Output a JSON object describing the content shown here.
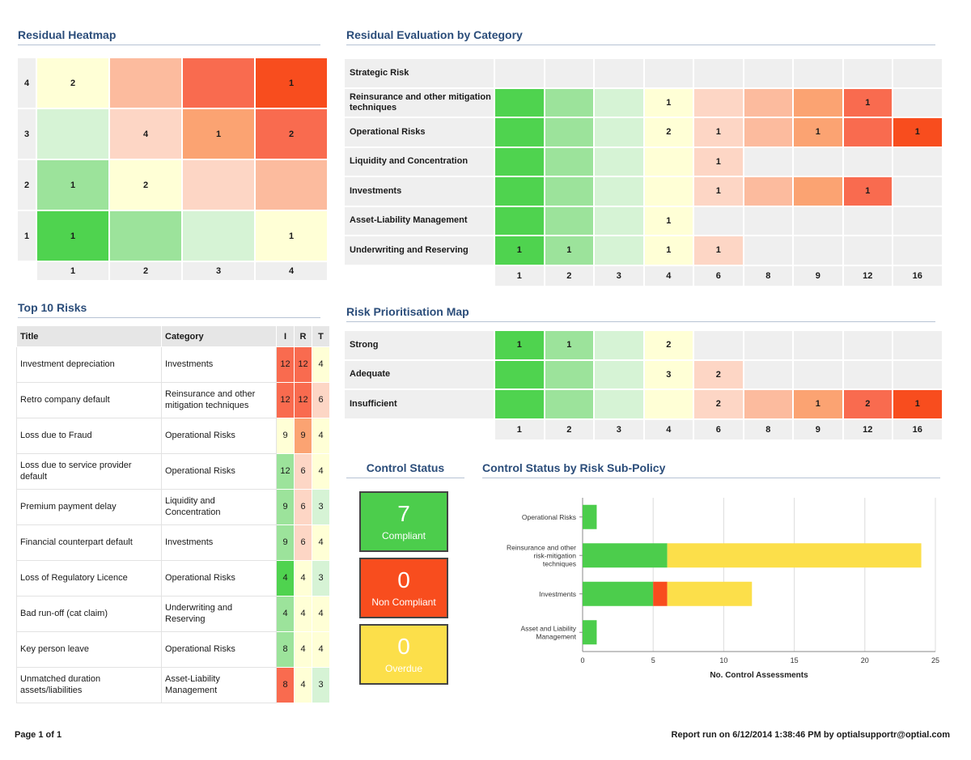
{
  "colors": {
    "1": "#4fd34f",
    "2": "#9ce39b",
    "3": "#d6f3d5",
    "4": "#ffffd6",
    "6": "#fdd6c5",
    "8": "#fcbb9e",
    "9": "#fba372",
    "12": "#f96b4f",
    "16": "#f84d1e",
    "compliant": "#4ccd4c",
    "noncompliant": "#f84d1e",
    "overdue": "#fcdf4a"
  },
  "heatmap": {
    "title": "Residual Heatmap",
    "rows": [
      "4",
      "3",
      "2",
      "1"
    ],
    "cols": [
      "1",
      "2",
      "3",
      "4"
    ],
    "cells": [
      [
        {
          "v": "2",
          "c": "4"
        },
        {
          "v": "",
          "c": "8"
        },
        {
          "v": "",
          "c": "12"
        },
        {
          "v": "1",
          "c": "16"
        }
      ],
      [
        {
          "v": "",
          "c": "3"
        },
        {
          "v": "4",
          "c": "6"
        },
        {
          "v": "1",
          "c": "9"
        },
        {
          "v": "2",
          "c": "12"
        }
      ],
      [
        {
          "v": "1",
          "c": "2"
        },
        {
          "v": "2",
          "c": "4"
        },
        {
          "v": "",
          "c": "6"
        },
        {
          "v": "",
          "c": "8"
        }
      ],
      [
        {
          "v": "1",
          "c": "1"
        },
        {
          "v": "",
          "c": "2"
        },
        {
          "v": "",
          "c": "3"
        },
        {
          "v": "1",
          "c": "4"
        }
      ]
    ]
  },
  "evaluation": {
    "title": "Residual Evaluation by Category",
    "columns": [
      "1",
      "2",
      "3",
      "4",
      "6",
      "8",
      "9",
      "12",
      "16"
    ],
    "rows": [
      {
        "label": "Strategic Risk",
        "colored": 0,
        "values": {}
      },
      {
        "label": "Reinsurance and other mitigation techniques",
        "colored": 8,
        "values": {
          "4": "1",
          "12": "1"
        }
      },
      {
        "label": "Operational Risks",
        "colored": 9,
        "values": {
          "4": "2",
          "6": "1",
          "9": "1",
          "16": "1"
        }
      },
      {
        "label": "Liquidity and Concentration",
        "colored": 5,
        "values": {
          "6": "1"
        }
      },
      {
        "label": "Investments",
        "colored": 8,
        "values": {
          "6": "1",
          "12": "1"
        }
      },
      {
        "label": "Asset-Liability Management",
        "colored": 4,
        "values": {
          "4": "1"
        }
      },
      {
        "label": "Underwriting and Reserving",
        "colored": 5,
        "values": {
          "1": "1",
          "2": "1",
          "4": "1",
          "6": "1"
        }
      }
    ]
  },
  "prioritisation": {
    "title": "Risk Prioritisation Map",
    "columns": [
      "1",
      "2",
      "3",
      "4",
      "6",
      "8",
      "9",
      "12",
      "16"
    ],
    "rows": [
      {
        "label": "Strong",
        "colored": 4,
        "values": {
          "1": "1",
          "2": "1",
          "4": "2"
        }
      },
      {
        "label": "Adequate",
        "colored": 5,
        "values": {
          "4": "3",
          "6": "2"
        }
      },
      {
        "label": "Insufficient",
        "colored": 9,
        "values": {
          "6": "2",
          "9": "1",
          "12": "2",
          "16": "1"
        }
      }
    ]
  },
  "top10": {
    "title": "Top 10 Risks",
    "headers": {
      "title": "Title",
      "category": "Category",
      "i": "I",
      "r": "R",
      "t": "T"
    },
    "rows": [
      {
        "title": "Investment depreciation",
        "category": "Investments",
        "i": "12",
        "r": "12",
        "t": "4"
      },
      {
        "title": "Retro company default",
        "category": "Reinsurance and other mitigation techniques",
        "i": "12",
        "r": "12",
        "t": "6"
      },
      {
        "title": "Loss due to Fraud",
        "category": "Operational Risks",
        "i": "9",
        "r": "9",
        "t": "4"
      },
      {
        "title": "Loss due to service provider default",
        "category": "Operational Risks",
        "i": "12",
        "r": "6",
        "t": "4"
      },
      {
        "title": "Premium payment delay",
        "category": "Liquidity and Concentration",
        "i": "9",
        "r": "6",
        "t": "3"
      },
      {
        "title": "Financial counterpart default",
        "category": "Investments",
        "i": "9",
        "r": "6",
        "t": "4"
      },
      {
        "title": "Loss of Regulatory Licence",
        "category": "Operational Risks",
        "i": "4",
        "r": "4",
        "t": "3"
      },
      {
        "title": "Bad run-off (cat claim)",
        "category": "Underwriting and Reserving",
        "i": "4",
        "r": "4",
        "t": "4"
      },
      {
        "title": "Key person leave",
        "category": "Operational Risks",
        "i": "8",
        "r": "4",
        "t": "4"
      },
      {
        "title": "Unmatched duration assets/liabilities",
        "category": "Asset-Liability Management",
        "i": "8",
        "r": "4",
        "t": "3"
      }
    ],
    "cell_colors": [
      {
        "i": "12",
        "r": "12",
        "t": "4"
      },
      {
        "i": "12",
        "r": "12",
        "t": "6"
      },
      {
        "i": "4",
        "r": "9",
        "t": "4"
      },
      {
        "i": "2",
        "r": "6",
        "t": "4"
      },
      {
        "i": "2",
        "r": "6",
        "t": "3"
      },
      {
        "i": "2",
        "r": "6",
        "t": "4"
      },
      {
        "i": "1",
        "r": "4",
        "t": "3"
      },
      {
        "i": "2",
        "r": "4",
        "t": "4"
      },
      {
        "i": "2",
        "r": "4",
        "t": "4"
      },
      {
        "i": "12",
        "r": "4",
        "t": "3"
      }
    ]
  },
  "control_status": {
    "title": "Control Status",
    "compliant": {
      "count": "7",
      "label": "Compliant"
    },
    "noncompliant": {
      "count": "0",
      "label": "Non Compliant"
    },
    "overdue": {
      "count": "0",
      "label": "Overdue"
    }
  },
  "chart_data": {
    "type": "bar",
    "orientation": "horizontal",
    "stacked": true,
    "title": "Control Status by Risk Sub-Policy",
    "xlabel": "No. Control Assessments",
    "xlim": [
      0,
      25
    ],
    "xticks": [
      0,
      5,
      10,
      15,
      20,
      25
    ],
    "grid": true,
    "categories": [
      "Operational Risks",
      "Reinsurance and other risk-mitigation techniques",
      "Investments",
      "Asset and Liability Management"
    ],
    "series": [
      {
        "values": [
          1,
          6,
          5,
          1
        ],
        "color": "#4ccd4c"
      },
      {
        "values": [
          0,
          0,
          1,
          0
        ],
        "color": "#f84d1e"
      },
      {
        "values": [
          0,
          18,
          6,
          0
        ],
        "color": "#fcdf4a"
      }
    ]
  },
  "footer": {
    "page": "Page 1 of 1",
    "report_run": "Report run on 6/12/2014 1:38:46 PM by optialsupportr@optial.com"
  }
}
